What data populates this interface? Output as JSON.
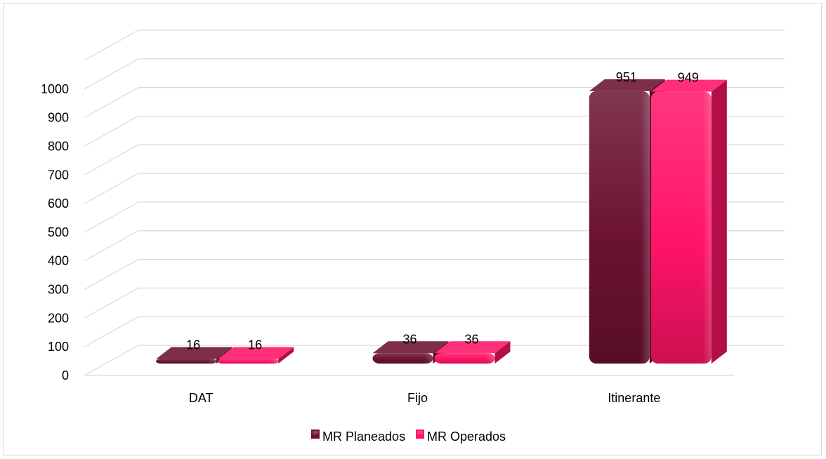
{
  "chart_data": {
    "type": "bar",
    "style": "3d-clustered-column",
    "categories": [
      "DAT",
      "Fijo",
      "Itinerante"
    ],
    "series": [
      {
        "name": "MR Planeados",
        "values": [
          16,
          36,
          951
        ],
        "color": "#6b1232"
      },
      {
        "name": "MR Operados",
        "values": [
          16,
          36,
          949
        ],
        "color": "#ff1467"
      }
    ],
    "y_ticks": [
      "0",
      "100",
      "200",
      "300",
      "400",
      "500",
      "600",
      "700",
      "800",
      "900",
      "1000"
    ],
    "ylim": [
      0,
      1100
    ],
    "grid": true,
    "legend_position": "bottom",
    "data_labels": true
  }
}
